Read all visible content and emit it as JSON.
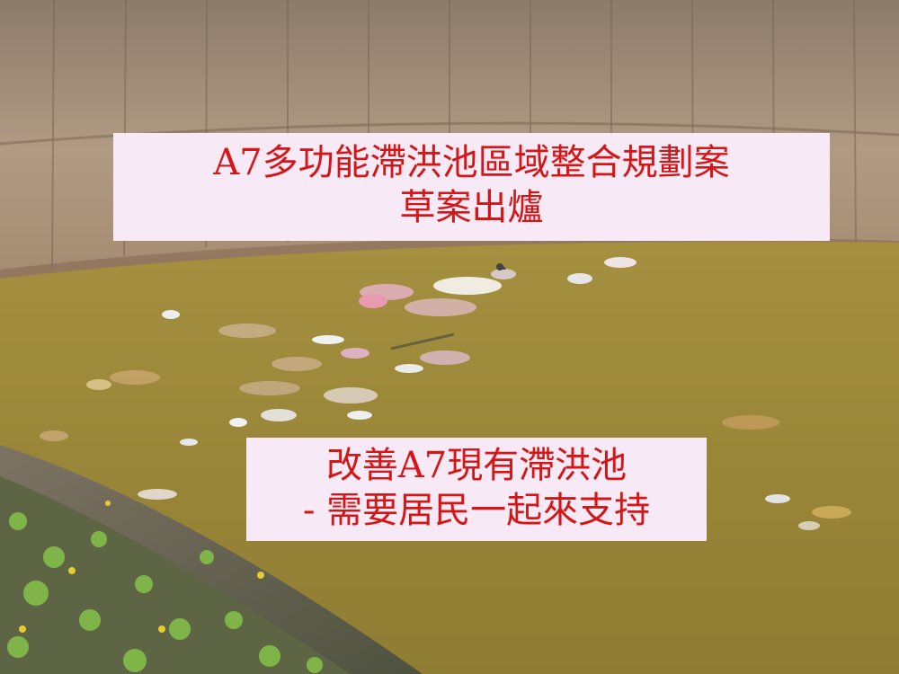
{
  "captions": {
    "top": {
      "line1": "A7多功能滯洪池區域整合規劃案",
      "line2": "草案出爐"
    },
    "bottom": {
      "line1": "改善A7現有滯洪池",
      "line2": "- 需要居民一起來支持"
    }
  },
  "colors": {
    "caption_text": "#d51616",
    "caption_background": "#f7e9f6",
    "water": "#9c8a3c",
    "concrete_wall": "#a89078"
  }
}
